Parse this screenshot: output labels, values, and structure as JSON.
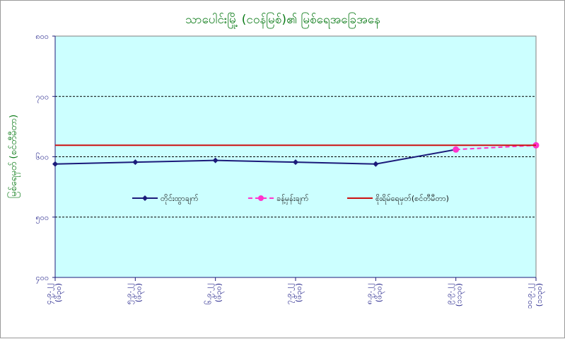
{
  "chart_data": {
    "type": "line",
    "title": "သာပေါင်းမြို့ (ငဝန်မြစ်)၏ မြစ်ရေအခြေအနေ",
    "ylabel": "မြစ်ရေမှတ် (စင်တီမီတာ)",
    "xlabel": "",
    "ylim": [
      400,
      800
    ],
    "ytick_labels": [
      "၈၀၀",
      "၇၀၀",
      "၆၀၀",
      "၅၀၀",
      "၄၀၀"
    ],
    "ytick_values": [
      800,
      700,
      600,
      500,
      400
    ],
    "categories": [
      [
        "၄.၉.၂၂",
        "(ဖိ၃၀)"
      ],
      [
        "၅.၉.၂၂",
        "(ဖိ၃၀)"
      ],
      [
        "၆.၉.၂၂",
        "(ဖိ၃၀)"
      ],
      [
        "၇.၉.၂၂",
        "(ဖိ၃၀)"
      ],
      [
        "၈.၉.၂၂",
        "(ဖိ၃၀)"
      ],
      [
        "၉.၉.၂၂",
        "(၁၁၃၀)"
      ],
      [
        "၁၀.၉.၂၂",
        "(၁၁၃၀)"
      ]
    ],
    "series": [
      {
        "name": "တိုင်းထွာချက်",
        "color": "#1b1b7a",
        "marker": "diamond",
        "style": "solid",
        "values": [
          588,
          591,
          594,
          591,
          588,
          612,
          null
        ]
      },
      {
        "name": "ခန့်မှန်းချက်",
        "color": "#ff33cc",
        "marker": "circle",
        "style": "dashed",
        "values": [
          null,
          null,
          null,
          null,
          null,
          612,
          619
        ]
      },
      {
        "name": "စိုးရိမ်ရေမှတ်(စင်တီမီတာ)",
        "color": "#cc1010",
        "marker": "none",
        "style": "solid",
        "values": [
          619,
          619,
          619,
          619,
          619,
          619,
          619
        ]
      }
    ],
    "grid": true,
    "plot_background": "#ccffff",
    "legend_position": "center"
  }
}
